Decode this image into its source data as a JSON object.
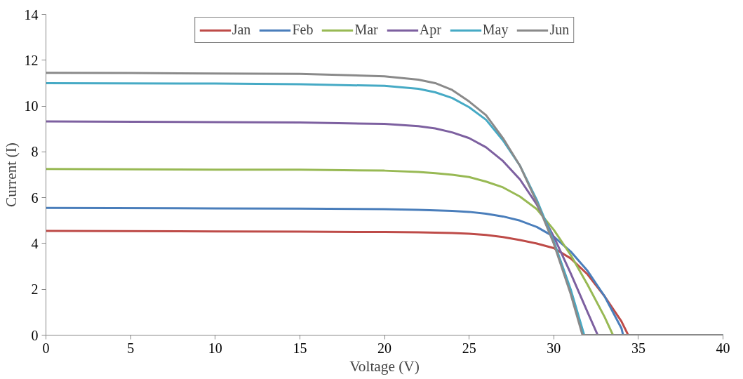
{
  "chart_data": {
    "type": "line",
    "xlabel": "Voltage (V)",
    "ylabel": "Current (I)",
    "xlim": [
      0,
      40
    ],
    "xticks": [
      0,
      5,
      10,
      15,
      20,
      25,
      30,
      35,
      40
    ],
    "ylim": [
      0,
      14
    ],
    "yticks": [
      0,
      2,
      4,
      6,
      8,
      10,
      12,
      14
    ],
    "grid": false,
    "legend": "top",
    "marker": "none",
    "line_style": "solid",
    "series": [
      {
        "name": "Jan",
        "color": "#be4b48",
        "x": [
          0,
          10,
          15,
          20,
          22,
          24,
          25,
          26,
          27,
          28,
          29,
          30,
          31,
          32,
          33,
          34,
          34.4,
          40
        ],
        "values": [
          4.55,
          4.53,
          4.52,
          4.5,
          4.49,
          4.46,
          4.43,
          4.37,
          4.28,
          4.15,
          4.0,
          3.8,
          3.35,
          2.65,
          1.7,
          0.6,
          0,
          0
        ]
      },
      {
        "name": "Feb",
        "color": "#4a7ebb",
        "x": [
          0,
          10,
          15,
          20,
          22,
          24,
          25,
          26,
          27,
          28,
          29,
          30,
          31,
          32,
          33,
          34,
          34.1,
          40
        ],
        "values": [
          5.55,
          5.53,
          5.52,
          5.5,
          5.47,
          5.42,
          5.38,
          5.3,
          5.18,
          5.0,
          4.72,
          4.3,
          3.65,
          2.8,
          1.7,
          0.3,
          0,
          0
        ]
      },
      {
        "name": "Mar",
        "color": "#98b954",
        "x": [
          0,
          10,
          15,
          20,
          22,
          23,
          24,
          25,
          26,
          27,
          28,
          29,
          30,
          31,
          32,
          33,
          33.5,
          40
        ],
        "values": [
          7.25,
          7.22,
          7.22,
          7.18,
          7.12,
          7.07,
          7.0,
          6.9,
          6.7,
          6.45,
          6.05,
          5.5,
          4.6,
          3.5,
          2.2,
          0.8,
          0,
          0
        ]
      },
      {
        "name": "Apr",
        "color": "#7d60a0",
        "x": [
          0,
          10,
          15,
          20,
          22,
          23,
          24,
          25,
          26,
          27,
          28,
          29,
          30,
          31,
          32,
          32.6,
          40
        ],
        "values": [
          9.33,
          9.3,
          9.28,
          9.22,
          9.12,
          9.02,
          8.85,
          8.6,
          8.2,
          7.6,
          6.8,
          5.7,
          4.3,
          2.7,
          1.0,
          0,
          0
        ]
      },
      {
        "name": "May",
        "color": "#46aac5",
        "x": [
          0,
          10,
          15,
          20,
          22,
          23,
          24,
          25,
          26,
          27,
          28,
          29,
          30,
          31,
          31.8,
          40
        ],
        "values": [
          11.0,
          10.98,
          10.95,
          10.88,
          10.75,
          10.6,
          10.35,
          9.95,
          9.4,
          8.5,
          7.4,
          5.9,
          4.1,
          2.0,
          0,
          0
        ]
      },
      {
        "name": "Jun",
        "color": "#8a8a8a",
        "x": [
          0,
          5,
          10,
          15,
          20,
          22,
          23,
          24,
          25,
          26,
          27,
          28,
          29,
          30,
          31,
          31.7,
          40
        ],
        "values": [
          11.45,
          11.44,
          11.42,
          11.4,
          11.3,
          11.15,
          11.0,
          10.7,
          10.2,
          9.6,
          8.6,
          7.4,
          5.8,
          4.0,
          1.8,
          0,
          0
        ]
      }
    ]
  }
}
